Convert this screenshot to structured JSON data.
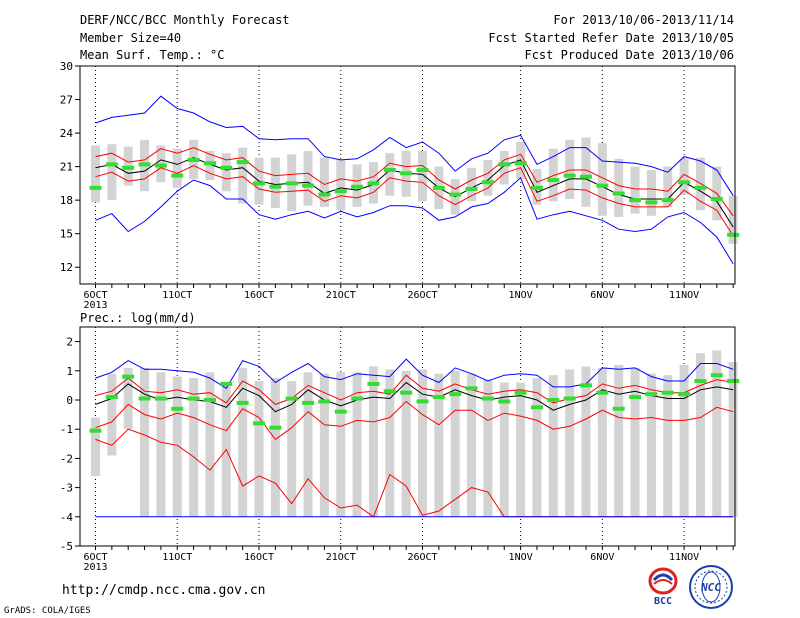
{
  "header": {
    "title": "DERF/NCC/BCC Monthly Forecast",
    "member_size": "Member Size=40",
    "variable": "Mean Surf. Temp.: °C",
    "period": "For 2013/10/06-2013/11/14",
    "started": "Fcst Started Refer Date 2013/10/05",
    "produced": "Fcst Produced Date 2013/10/06"
  },
  "footer": {
    "url": "http://cmdp.ncc.cma.gov.cn",
    "credit": "GrADS: COLA/IGES",
    "logo_bcc": "BCC",
    "logo_ncc": "NCC"
  },
  "chart_data": [
    {
      "type": "line",
      "ylabel": "Mean Surf. Temp.: °C",
      "xlabel": "",
      "x_year_label": "2013",
      "ylim": [
        10.5,
        30
      ],
      "yticks": [
        12,
        15,
        18,
        21,
        24,
        27,
        30
      ],
      "xticks": [
        {
          "day": 0,
          "label": "6OCT"
        },
        {
          "day": 5,
          "label": "11OCT"
        },
        {
          "day": 10,
          "label": "16OCT"
        },
        {
          "day": 15,
          "label": "21OCT"
        },
        {
          "day": 20,
          "label": "26OCT"
        },
        {
          "day": 26,
          "label": "1NOV"
        },
        {
          "day": 31,
          "label": "6NOV"
        },
        {
          "day": 36,
          "label": "11NOV"
        }
      ],
      "x": [
        "10/06",
        "10/07",
        "10/08",
        "10/09",
        "10/10",
        "10/11",
        "10/12",
        "10/13",
        "10/14",
        "10/15",
        "10/16",
        "10/17",
        "10/18",
        "10/19",
        "10/20",
        "10/21",
        "10/22",
        "10/23",
        "10/24",
        "10/25",
        "10/26",
        "10/27",
        "10/28",
        "10/29",
        "10/30",
        "10/31",
        "11/01",
        "11/02",
        "11/03",
        "11/04",
        "11/05",
        "11/06",
        "11/07",
        "11/08",
        "11/09",
        "11/10",
        "11/11",
        "11/12",
        "11/13",
        "11/14"
      ],
      "series": [
        {
          "role": "max",
          "color": "#0000ff",
          "values": [
            24.9,
            25.4,
            25.6,
            25.8,
            27.3,
            26.2,
            25.8,
            25.0,
            24.5,
            24.6,
            23.5,
            23.4,
            23.5,
            23.5,
            21.9,
            21.6,
            21.7,
            22.5,
            23.6,
            22.7,
            23.2,
            22.2,
            20.6,
            21.7,
            22.2,
            23.4,
            23.8,
            21.2,
            21.9,
            22.7,
            22.7,
            21.5,
            21.4,
            21.3,
            21.0,
            20.5,
            21.9,
            21.5,
            20.7,
            18.4
          ]
        },
        {
          "role": "p85",
          "color": "#ff0000",
          "values": [
            21.9,
            22.2,
            21.4,
            21.6,
            22.6,
            22.2,
            22.7,
            22.1,
            21.6,
            21.8,
            20.6,
            20.2,
            20.3,
            20.4,
            19.4,
            19.9,
            19.7,
            20.1,
            21.3,
            21.0,
            21.1,
            19.8,
            19.0,
            19.8,
            20.4,
            21.6,
            22.1,
            19.6,
            20.2,
            20.7,
            20.7,
            20.0,
            19.3,
            19.0,
            19.0,
            18.8,
            20.3,
            19.5,
            18.6,
            16.6
          ]
        },
        {
          "role": "mean",
          "color": "#000000",
          "values": [
            20.9,
            21.2,
            20.4,
            20.6,
            21.6,
            21.2,
            21.8,
            21.2,
            20.7,
            20.9,
            19.7,
            19.4,
            19.5,
            19.6,
            18.6,
            19.1,
            18.9,
            19.4,
            20.7,
            20.4,
            20.3,
            19.1,
            18.3,
            19.1,
            19.8,
            21.1,
            21.6,
            18.7,
            19.3,
            19.9,
            19.9,
            19.2,
            18.5,
            18.1,
            18.1,
            18.1,
            19.6,
            18.8,
            17.9,
            15.6
          ]
        },
        {
          "role": "p15",
          "color": "#ff0000",
          "values": [
            20.1,
            20.5,
            19.7,
            19.9,
            20.9,
            20.4,
            21.1,
            20.4,
            19.9,
            20.1,
            19.0,
            18.7,
            18.8,
            18.9,
            17.9,
            18.4,
            18.2,
            18.7,
            20.0,
            19.7,
            19.6,
            18.4,
            17.6,
            18.4,
            19.1,
            20.4,
            20.9,
            17.9,
            18.4,
            19.0,
            18.9,
            18.2,
            17.7,
            17.4,
            17.4,
            17.4,
            18.9,
            17.9,
            17.1,
            14.8
          ]
        },
        {
          "role": "min",
          "color": "#0000ff",
          "values": [
            16.2,
            16.8,
            15.2,
            16.1,
            17.4,
            18.8,
            19.8,
            19.3,
            18.1,
            18.1,
            16.7,
            16.3,
            16.7,
            17.0,
            16.4,
            17.0,
            16.5,
            16.9,
            17.5,
            17.5,
            17.3,
            16.2,
            16.5,
            17.4,
            17.7,
            18.7,
            20.0,
            16.3,
            16.7,
            17.0,
            16.6,
            16.2,
            15.4,
            15.2,
            15.4,
            16.5,
            16.9,
            16.0,
            14.7,
            12.3
          ]
        }
      ],
      "boxes": {
        "color": "#d3d3d3",
        "low": [
          17.8,
          18.0,
          19.3,
          18.8,
          19.6,
          19.1,
          19.9,
          19.8,
          18.8,
          17.7,
          17.6,
          17.3,
          17.0,
          17.5,
          17.4,
          17.1,
          17.4,
          17.7,
          18.4,
          18.3,
          17.9,
          17.2,
          16.7,
          17.9,
          18.4,
          19.4,
          19.9,
          17.6,
          17.9,
          18.1,
          17.4,
          16.6,
          16.5,
          16.8,
          16.6,
          17.4,
          18.5,
          17.1,
          16.2,
          14.1
        ],
        "high": [
          22.9,
          23.0,
          22.8,
          23.4,
          22.9,
          22.6,
          23.4,
          22.4,
          22.2,
          22.7,
          21.8,
          21.8,
          22.1,
          22.4,
          21.8,
          21.6,
          21.2,
          21.4,
          22.2,
          22.4,
          22.4,
          21.0,
          19.9,
          20.9,
          21.6,
          22.4,
          23.2,
          20.8,
          22.6,
          23.4,
          23.6,
          23.1,
          21.7,
          21.0,
          20.7,
          21.0,
          21.7,
          21.8,
          21.0,
          18.4
        ]
      },
      "markers": {
        "color": "#33dd33",
        "values": [
          19.1,
          21.2,
          20.9,
          21.2,
          21.1,
          20.2,
          21.6,
          21.3,
          20.9,
          21.4,
          19.5,
          19.2,
          19.5,
          19.3,
          18.5,
          18.8,
          19.2,
          19.5,
          20.7,
          20.4,
          20.7,
          19.1,
          18.5,
          19.0,
          19.6,
          21.2,
          21.3,
          19.1,
          19.8,
          20.2,
          20.1,
          19.3,
          18.6,
          18.0,
          17.8,
          18.0,
          19.6,
          19.1,
          18.1,
          14.9
        ]
      }
    },
    {
      "type": "line",
      "title": "Prec.: log(mm/d)",
      "ylabel": "Prec.: log(mm/d)",
      "xlabel": "",
      "x_year_label": "2013",
      "ylim": [
        -5,
        2.5
      ],
      "yticks": [
        -5,
        -4,
        -3,
        -2,
        -1,
        0,
        1,
        2
      ],
      "xticks": [
        {
          "day": 0,
          "label": "6OCT"
        },
        {
          "day": 5,
          "label": "11OCT"
        },
        {
          "day": 10,
          "label": "16OCT"
        },
        {
          "day": 15,
          "label": "21OCT"
        },
        {
          "day": 20,
          "label": "26OCT"
        },
        {
          "day": 26,
          "label": "1NOV"
        },
        {
          "day": 31,
          "label": "6NOV"
        },
        {
          "day": 36,
          "label": "11NOV"
        }
      ],
      "series": [
        {
          "role": "max",
          "color": "#0000ff",
          "values": [
            0.75,
            0.95,
            1.35,
            1.05,
            1.05,
            1.0,
            0.95,
            0.75,
            0.4,
            1.35,
            1.15,
            0.6,
            0.95,
            1.25,
            0.8,
            0.7,
            0.9,
            0.85,
            0.8,
            1.4,
            0.85,
            0.6,
            1.1,
            0.9,
            0.65,
            0.85,
            0.9,
            0.85,
            0.45,
            0.45,
            0.55,
            1.1,
            1.05,
            1.1,
            0.8,
            0.65,
            0.65,
            1.25,
            1.25,
            1.05
          ]
        },
        {
          "role": "p85",
          "color": "#ff0000",
          "values": [
            0.15,
            0.3,
            0.75,
            0.3,
            0.25,
            0.35,
            0.2,
            0.25,
            -0.1,
            0.65,
            0.35,
            -0.15,
            0.05,
            0.5,
            0.25,
            0.0,
            0.25,
            0.3,
            0.2,
            0.85,
            0.4,
            0.3,
            0.55,
            0.35,
            0.2,
            0.3,
            0.35,
            0.25,
            -0.1,
            0.05,
            0.15,
            0.55,
            0.4,
            0.5,
            0.35,
            0.25,
            0.25,
            0.5,
            0.7,
            0.6
          ]
        },
        {
          "role": "mean",
          "color": "#000000",
          "values": [
            -0.15,
            0.05,
            0.55,
            0.2,
            0.0,
            0.1,
            0.0,
            -0.05,
            -0.25,
            0.4,
            0.15,
            -0.4,
            -0.15,
            0.35,
            0.0,
            -0.2,
            0.0,
            0.1,
            0.05,
            0.6,
            0.2,
            0.1,
            0.35,
            0.15,
            0.0,
            0.1,
            0.15,
            0.0,
            -0.35,
            -0.15,
            0.0,
            0.35,
            0.2,
            0.3,
            0.15,
            0.05,
            0.05,
            0.35,
            0.45,
            0.35
          ]
        },
        {
          "role": "p15",
          "color": "#ff0000",
          "values": [
            -0.95,
            -0.75,
            -0.15,
            -0.5,
            -0.65,
            -0.45,
            -0.6,
            -0.85,
            -1.05,
            -0.3,
            -0.6,
            -1.35,
            -0.95,
            -0.4,
            -0.85,
            -0.9,
            -0.7,
            -0.75,
            -0.6,
            -0.05,
            -0.5,
            -0.85,
            -0.35,
            -0.35,
            -0.7,
            -0.45,
            -0.55,
            -0.7,
            -1.0,
            -0.9,
            -0.65,
            -0.35,
            -0.6,
            -0.65,
            -0.6,
            -0.7,
            -0.7,
            -0.6,
            -0.25,
            -0.4
          ]
        },
        {
          "role": "min",
          "color": "#ff0000",
          "values": [
            -1.35,
            -1.55,
            -1.0,
            -1.2,
            -1.45,
            -1.55,
            -1.95,
            -2.4,
            -1.7,
            -2.95,
            -2.6,
            -2.85,
            -3.55,
            -2.7,
            -3.35,
            -3.7,
            -3.6,
            -4.0,
            -2.55,
            -2.95,
            -3.95,
            -3.8,
            -3.4,
            -3.0,
            -3.15,
            -4.0,
            -4.0,
            -4.0,
            -4.0,
            -4.0,
            -4.0,
            -4.0,
            -4.0,
            -4.0,
            -4.0,
            -4.0,
            -4.0,
            -4.0,
            -4.0,
            -4.0
          ]
        },
        {
          "role": "floor",
          "color": "#0000ff",
          "values": [
            -4,
            -4,
            -4,
            -4,
            -4,
            -4,
            -4,
            -4,
            -4,
            -4,
            -4,
            -4,
            -4,
            -4,
            -4,
            -4,
            -4,
            -4,
            -4,
            -4,
            -4,
            -4,
            -4,
            -4,
            -4,
            -4,
            -4,
            -4,
            -4,
            -4,
            -4,
            -4,
            -4,
            -4,
            -4,
            -4,
            -4,
            -4,
            -4,
            -4
          ]
        }
      ],
      "boxes": {
        "color": "#d3d3d3",
        "low": [
          -2.6,
          -1.9,
          -1.0,
          -4.0,
          -4.0,
          -4.0,
          -4.0,
          -4.0,
          -4.0,
          -4.0,
          -4.0,
          -4.0,
          -4.0,
          -4.0,
          -4.0,
          -4.0,
          -4.0,
          -4.0,
          -4.0,
          -4.0,
          -4.0,
          -4.0,
          -4.0,
          -4.0,
          -4.0,
          -4.0,
          -4.0,
          -4.0,
          -4.0,
          -4.0,
          -4.0,
          -4.0,
          -4.0,
          -4.0,
          -4.0,
          -4.0,
          -4.0,
          -4.0,
          -4.0,
          -4.0
        ],
        "high": [
          -0.6,
          0.9,
          1.1,
          1.1,
          0.95,
          0.8,
          0.75,
          0.95,
          0.6,
          1.1,
          0.65,
          0.75,
          0.65,
          0.95,
          0.9,
          0.95,
          0.95,
          1.15,
          1.05,
          1.0,
          1.05,
          0.9,
          1.0,
          0.9,
          0.7,
          0.6,
          0.6,
          0.75,
          0.85,
          1.05,
          1.15,
          1.1,
          1.2,
          1.1,
          0.9,
          0.85,
          1.2,
          1.6,
          1.7,
          1.3
        ]
      },
      "markers": {
        "color": "#33dd33",
        "values": [
          -1.05,
          0.1,
          0.8,
          0.05,
          0.05,
          -0.3,
          0.05,
          0.0,
          0.55,
          -0.1,
          -0.8,
          -0.95,
          0.05,
          -0.1,
          -0.05,
          -0.4,
          0.05,
          0.55,
          0.3,
          0.25,
          -0.05,
          0.1,
          0.2,
          0.4,
          0.05,
          -0.05,
          0.25,
          -0.25,
          0.0,
          0.05,
          0.5,
          0.25,
          -0.3,
          0.1,
          0.2,
          0.25,
          0.2,
          0.65,
          0.85,
          0.65
        ]
      }
    }
  ]
}
